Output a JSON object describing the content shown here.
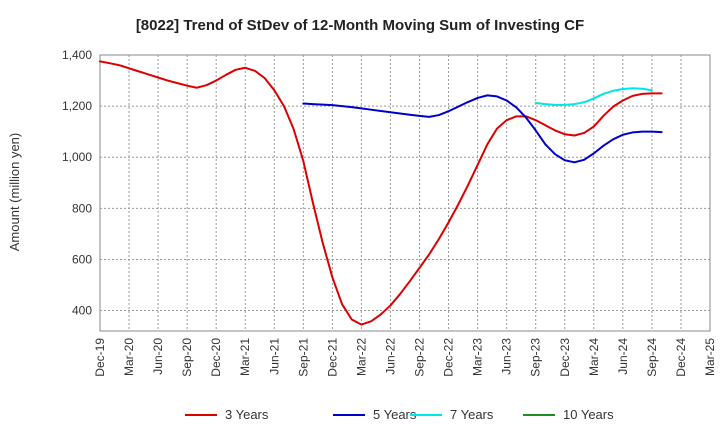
{
  "chart_data": {
    "type": "line",
    "title": "[8022]  Trend of StDev of 12-Month Moving Sum of Investing CF",
    "xlabel": "",
    "ylabel": "Amount (million yen)",
    "ylim": [
      320,
      1400
    ],
    "yticks": [
      400,
      600,
      800,
      1000,
      1200,
      1400
    ],
    "ytick_labels": [
      "400",
      "600",
      "800",
      "1,000",
      "1,200",
      "1,400"
    ],
    "x_categories": [
      "Dec-19",
      "Jan-20",
      "Feb-20",
      "Mar-20",
      "Apr-20",
      "May-20",
      "Jun-20",
      "Jul-20",
      "Aug-20",
      "Sep-20",
      "Oct-20",
      "Nov-20",
      "Dec-20",
      "Jan-21",
      "Feb-21",
      "Mar-21",
      "Apr-21",
      "May-21",
      "Jun-21",
      "Jul-21",
      "Aug-21",
      "Sep-21",
      "Oct-21",
      "Nov-21",
      "Dec-21",
      "Jan-22",
      "Feb-22",
      "Mar-22",
      "Apr-22",
      "May-22",
      "Jun-22",
      "Jul-22",
      "Aug-22",
      "Sep-22",
      "Oct-22",
      "Nov-22",
      "Dec-22",
      "Jan-23",
      "Feb-23",
      "Mar-23",
      "Apr-23",
      "May-23",
      "Jun-23",
      "Jul-23",
      "Aug-23",
      "Sep-23",
      "Oct-23",
      "Nov-23",
      "Dec-23",
      "Jan-24",
      "Feb-24",
      "Mar-24",
      "Apr-24",
      "May-24",
      "Jun-24",
      "Jul-24",
      "Aug-24",
      "Sep-24",
      "Oct-24",
      "Nov-24",
      "Dec-24",
      "Jan-25",
      "Feb-25",
      "Mar-25"
    ],
    "xtick_labels": [
      "Dec-19",
      "Mar-20",
      "Jun-20",
      "Sep-20",
      "Dec-20",
      "Mar-21",
      "Jun-21",
      "Sep-21",
      "Dec-21",
      "Mar-22",
      "Jun-22",
      "Sep-22",
      "Dec-22",
      "Mar-23",
      "Jun-23",
      "Sep-23",
      "Dec-23",
      "Mar-24",
      "Jun-24",
      "Sep-24",
      "Dec-24",
      "Mar-25"
    ],
    "grid": true,
    "legend_position": "bottom",
    "series": [
      {
        "name": "3 Years",
        "color": "#dd0000",
        "values": [
          1375,
          1368,
          1360,
          1348,
          1336,
          1324,
          1312,
          1300,
          1290,
          1280,
          1272,
          1282,
          1300,
          1322,
          1342,
          1350,
          1338,
          1310,
          1262,
          1200,
          1110,
          985,
          820,
          665,
          530,
          425,
          365,
          345,
          358,
          385,
          420,
          465,
          515,
          567,
          620,
          680,
          745,
          815,
          890,
          970,
          1050,
          1112,
          1145,
          1160,
          1160,
          1145,
          1125,
          1105,
          1090,
          1085,
          1095,
          1120,
          1162,
          1198,
          1222,
          1240,
          1248,
          1250,
          1250,
          null,
          null,
          null,
          null,
          null
        ]
      },
      {
        "name": "5 Years",
        "color": "#0000cc",
        "values": [
          null,
          null,
          null,
          null,
          null,
          null,
          null,
          null,
          null,
          null,
          null,
          null,
          null,
          null,
          null,
          null,
          null,
          null,
          null,
          null,
          null,
          1210,
          1208,
          1206,
          1204,
          1200,
          1196,
          1191,
          1186,
          1181,
          1176,
          1171,
          1166,
          1162,
          1158,
          1165,
          1180,
          1198,
          1216,
          1232,
          1242,
          1238,
          1222,
          1195,
          1155,
          1105,
          1050,
          1012,
          988,
          980,
          990,
          1015,
          1045,
          1070,
          1088,
          1097,
          1100,
          1100,
          1098,
          null,
          null,
          null,
          null,
          null
        ]
      },
      {
        "name": "7 Years",
        "color": "#00e5e5",
        "values": [
          null,
          null,
          null,
          null,
          null,
          null,
          null,
          null,
          null,
          null,
          null,
          null,
          null,
          null,
          null,
          null,
          null,
          null,
          null,
          null,
          null,
          null,
          null,
          null,
          null,
          null,
          null,
          null,
          null,
          null,
          null,
          null,
          null,
          null,
          null,
          null,
          null,
          null,
          null,
          null,
          null,
          null,
          null,
          null,
          null,
          1212,
          1208,
          1205,
          1205,
          1208,
          1215,
          1230,
          1248,
          1260,
          1267,
          1270,
          1268,
          1262,
          null,
          null,
          null,
          null,
          null,
          null
        ]
      },
      {
        "name": "10 Years",
        "color": "#228B22",
        "values": []
      }
    ]
  }
}
